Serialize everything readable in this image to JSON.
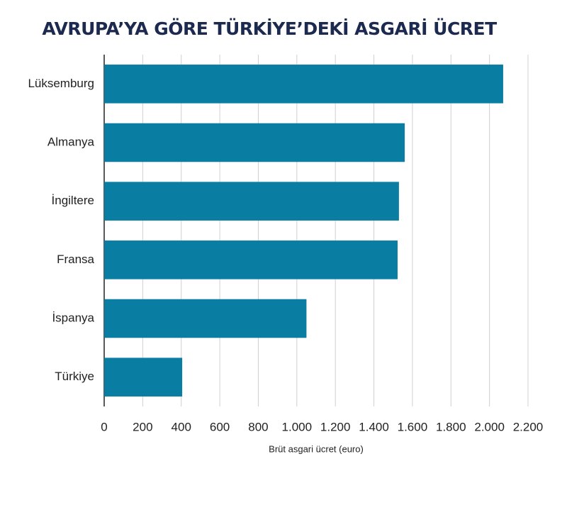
{
  "chart_data": {
    "type": "bar",
    "orientation": "horizontal",
    "title": "AVRUPA’YA GÖRE TÜRKİYE’DEKİ ASGARİ ÜCRET",
    "x_label": "Brüt asgari ücret (euro)",
    "categories": [
      "Lüksemburg",
      "Almanya",
      "İngiltere",
      "Fransa",
      "İspanya",
      "Türkiye"
    ],
    "values": [
      2071,
      1560,
      1530,
      1523,
      1050,
      405
    ],
    "color": "#0a7ea2",
    "xlim": [
      0,
      2200
    ],
    "xticks": [
      0,
      200,
      400,
      600,
      800,
      {
        "value": 1000,
        "label": "1.000"
      },
      {
        "value": 1200,
        "label": "1.200"
      },
      {
        "value": 1400,
        "label": "1.400"
      },
      {
        "value": 1600,
        "label": "1.600"
      },
      {
        "value": 1800,
        "label": "1.800"
      },
      {
        "value": 2000,
        "label": "2.000"
      },
      {
        "value": 2200,
        "label": "2.200"
      }
    ],
    "grid": true
  }
}
